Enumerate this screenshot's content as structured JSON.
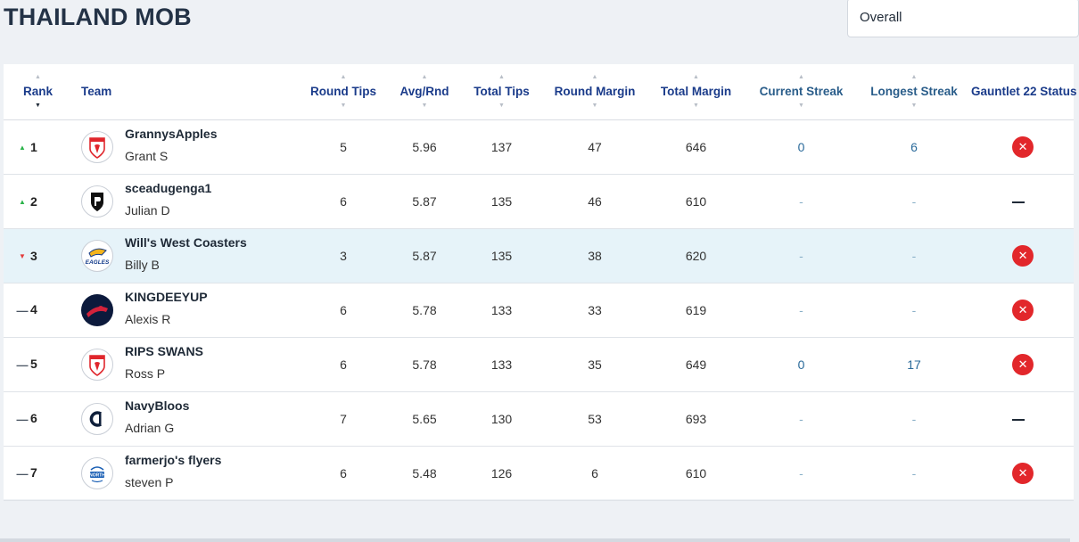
{
  "header": {
    "title": "THAILAND MOB",
    "filter_value": "Overall"
  },
  "table": {
    "columns": {
      "rank": "Rank",
      "team": "Team",
      "round_tips": "Round Tips",
      "avg_rnd": "Avg/Rnd",
      "total_tips": "Total Tips",
      "round_margin": "Round Margin",
      "total_margin": "Total Margin",
      "current_streak": "Current Streak",
      "longest_streak": "Longest Streak",
      "gauntlet": "Gauntlet 22 Status"
    },
    "rows": [
      {
        "rank": "1",
        "movement": "up",
        "team": "GrannysApples",
        "user": "Grant S",
        "logo": "sydney-swans-icon",
        "round_tips": "5",
        "avg": "5.96",
        "total_tips": "137",
        "round_margin": "47",
        "total_margin": "646",
        "current_streak": "0",
        "longest_streak": "6",
        "gauntlet": "eliminated",
        "highlight": false
      },
      {
        "rank": "2",
        "movement": "up",
        "team": "sceadugenga1",
        "user": "Julian D",
        "logo": "port-adelaide-icon",
        "round_tips": "6",
        "avg": "5.87",
        "total_tips": "135",
        "round_margin": "46",
        "total_margin": "610",
        "current_streak": "-",
        "longest_streak": "-",
        "gauntlet": "none",
        "highlight": false
      },
      {
        "rank": "3",
        "movement": "down",
        "team": "Will's West Coasters",
        "user": "Billy B",
        "logo": "west-coast-eagles-icon",
        "round_tips": "3",
        "avg": "5.87",
        "total_tips": "135",
        "round_margin": "38",
        "total_margin": "620",
        "current_streak": "-",
        "longest_streak": "-",
        "gauntlet": "eliminated",
        "highlight": true
      },
      {
        "rank": "4",
        "movement": "same",
        "team": "KINGDEEYUP",
        "user": "Alexis R",
        "logo": "melbourne-demons-icon",
        "round_tips": "6",
        "avg": "5.78",
        "total_tips": "133",
        "round_margin": "33",
        "total_margin": "619",
        "current_streak": "-",
        "longest_streak": "-",
        "gauntlet": "eliminated",
        "highlight": false
      },
      {
        "rank": "5",
        "movement": "same",
        "team": "RIPS SWANS",
        "user": "Ross P",
        "logo": "sydney-swans-icon",
        "round_tips": "6",
        "avg": "5.78",
        "total_tips": "133",
        "round_margin": "35",
        "total_margin": "649",
        "current_streak": "0",
        "longest_streak": "17",
        "gauntlet": "eliminated",
        "highlight": false
      },
      {
        "rank": "6",
        "movement": "same",
        "team": "NavyBloos",
        "user": "Adrian G",
        "logo": "carlton-blues-icon",
        "round_tips": "7",
        "avg": "5.65",
        "total_tips": "130",
        "round_margin": "53",
        "total_margin": "693",
        "current_streak": "-",
        "longest_streak": "-",
        "gauntlet": "none",
        "highlight": false
      },
      {
        "rank": "7",
        "movement": "same",
        "team": "farmerjo's flyers",
        "user": "steven P",
        "logo": "north-melbourne-icon",
        "round_tips": "6",
        "avg": "5.48",
        "total_tips": "126",
        "round_margin": "6",
        "total_margin": "610",
        "current_streak": "-",
        "longest_streak": "-",
        "gauntlet": "eliminated",
        "highlight": false
      }
    ]
  },
  "colors": {
    "accent": "#1a3b8a",
    "highlight_row": "#e6f3f9",
    "up": "#2bb34a",
    "down": "#e23b3b",
    "eliminated": "#e2272b"
  }
}
